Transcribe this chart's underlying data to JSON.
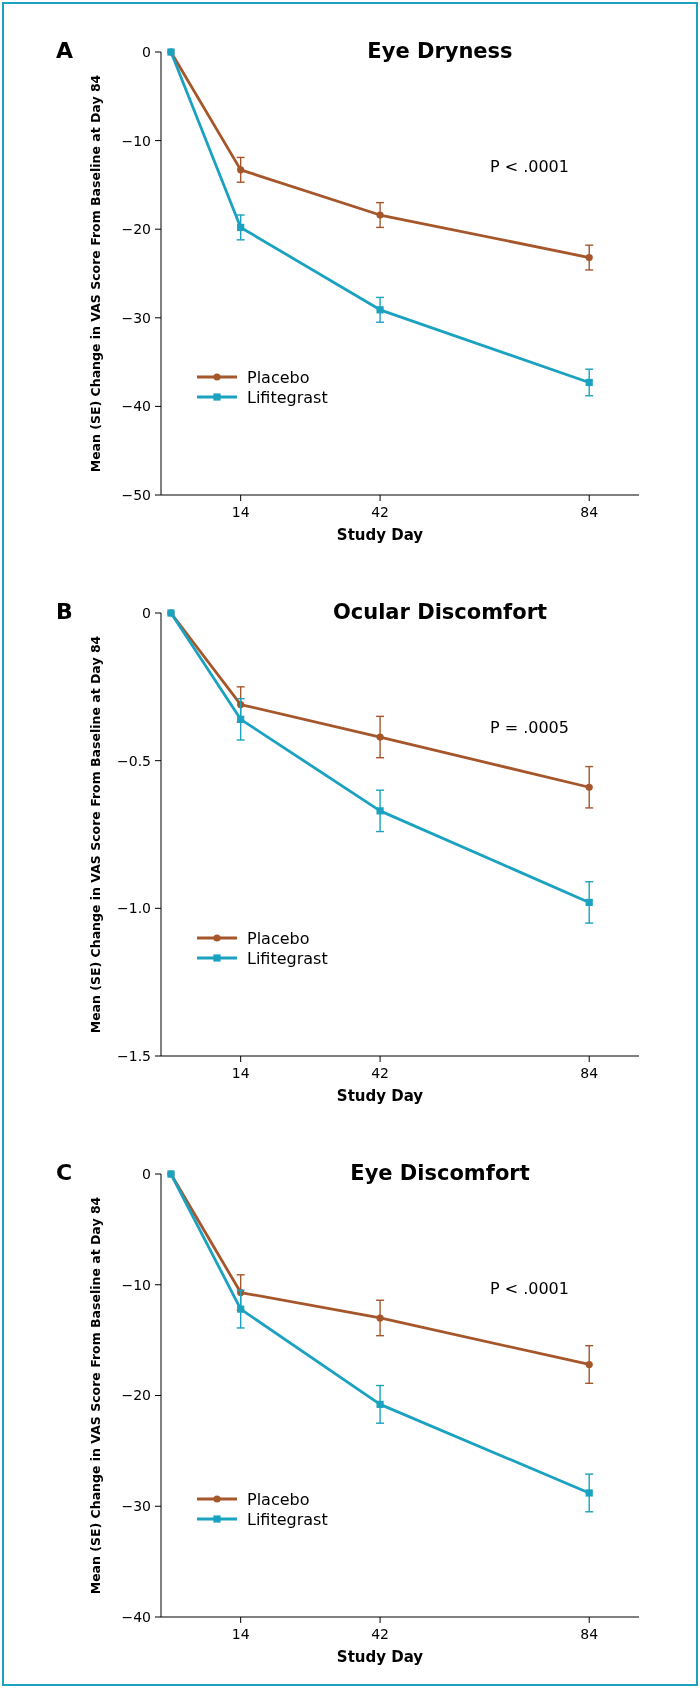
{
  "chart_data": [
    {
      "type": "line",
      "title": "Eye Dryness",
      "xlabel": "Study Day",
      "ylabel": "Mean (SE) Change in VAS Score From Baseline at Day 84",
      "annotations": [
        "A",
        "P < .0001"
      ],
      "x": [
        0,
        14,
        42,
        84
      ],
      "xlim": [
        -2,
        94
      ],
      "xticks": [
        14,
        42,
        84
      ],
      "ylim": [
        -50,
        0
      ],
      "yticks": [
        {
          "value": -50,
          "label": "−50"
        },
        {
          "value": -40,
          "label": "−40"
        },
        {
          "value": -30,
          "label": "−30"
        },
        {
          "value": -20,
          "label": "−20"
        },
        {
          "value": -10,
          "label": "−10"
        },
        {
          "value": 0,
          "label": "0"
        }
      ],
      "legend": "bottom left",
      "series": [
        {
          "name": "Placebo",
          "color": "#a5562b",
          "marker": "circle",
          "values": [
            0,
            -13.3,
            -18.4,
            -23.2
          ],
          "errors": [
            null,
            1.4,
            1.4,
            1.4
          ]
        },
        {
          "name": "Lifitegrast",
          "color": "#1aa2c0",
          "marker": "square",
          "values": [
            0,
            -19.8,
            -29.1,
            -37.3
          ],
          "errors": [
            null,
            1.4,
            1.4,
            1.5
          ]
        }
      ]
    },
    {
      "type": "line",
      "title": "Ocular Discomfort",
      "xlabel": "Study Day",
      "ylabel": "Mean (SE) Change in VAS Score From Baseline at Day 84",
      "annotations": [
        "B",
        "P = .0005"
      ],
      "x": [
        0,
        14,
        42,
        84
      ],
      "xlim": [
        -2,
        94
      ],
      "xticks": [
        14,
        42,
        84
      ],
      "ylim": [
        -1.5,
        0
      ],
      "yticks": [
        {
          "value": -1.5,
          "label": "−1.5"
        },
        {
          "value": -1,
          "label": "−1.0"
        },
        {
          "value": -0.5,
          "label": "−0.5"
        },
        {
          "value": 0,
          "label": "0"
        }
      ],
      "legend": "bottom left",
      "series": [
        {
          "name": "Placebo",
          "color": "#a5562b",
          "marker": "circle",
          "values": [
            0,
            -0.31,
            -0.42,
            -0.59
          ],
          "errors": [
            null,
            0.06,
            0.07,
            0.07
          ]
        },
        {
          "name": "Lifitegrast",
          "color": "#1aa2c0",
          "marker": "square",
          "values": [
            0,
            -0.36,
            -0.67,
            -0.98
          ],
          "errors": [
            null,
            0.07,
            0.07,
            0.07
          ]
        }
      ]
    },
    {
      "type": "line",
      "title": "Eye Discomfort",
      "xlabel": "Study Day",
      "ylabel": "Mean (SE) Change in VAS Score From Baseline at Day 84",
      "annotations": [
        "C",
        "P < .0001"
      ],
      "x": [
        0,
        14,
        42,
        84
      ],
      "xlim": [
        -2,
        94
      ],
      "xticks": [
        14,
        42,
        84
      ],
      "ylim": [
        -40,
        0
      ],
      "yticks": [
        {
          "value": -40,
          "label": "−40"
        },
        {
          "value": -30,
          "label": "−30"
        },
        {
          "value": -20,
          "label": "−20"
        },
        {
          "value": -10,
          "label": "−10"
        },
        {
          "value": 0,
          "label": "0"
        }
      ],
      "legend": "bottom left",
      "series": [
        {
          "name": "Placebo",
          "color": "#a5562b",
          "marker": "circle",
          "values": [
            0,
            -10.7,
            -13.0,
            -17.2
          ],
          "errors": [
            null,
            1.6,
            1.6,
            1.7
          ]
        },
        {
          "name": "Lifitegrast",
          "color": "#1aa2c0",
          "marker": "square",
          "values": [
            0,
            -12.2,
            -20.8,
            -28.8
          ],
          "errors": [
            null,
            1.7,
            1.7,
            1.7
          ]
        }
      ]
    }
  ]
}
